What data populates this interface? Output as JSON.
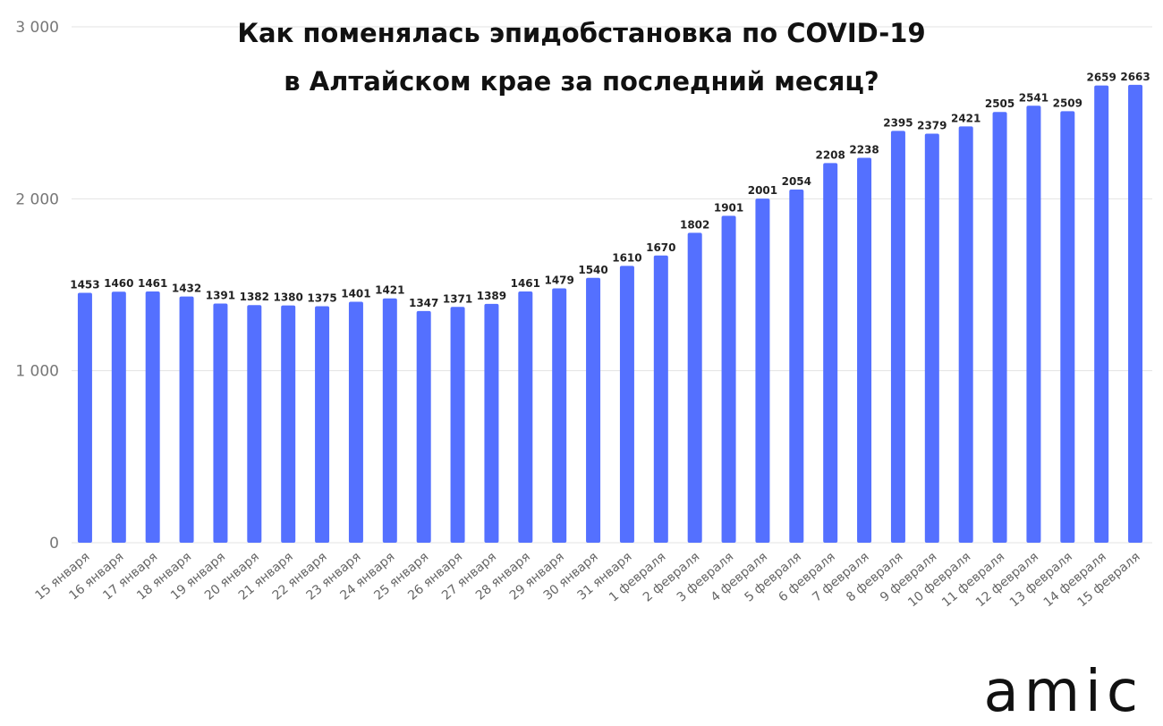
{
  "chart_data": {
    "type": "bar",
    "title_lines": [
      "Как поменялась эпидобстановка по COVID-19",
      "в Алтайском крае за последний месяц?"
    ],
    "categories": [
      "15 января",
      "16 января",
      "17 января",
      "18 января",
      "19 января",
      "20 января",
      "21 января",
      "22 января",
      "23 января",
      "24 января",
      "25 января",
      "26 января",
      "27 января",
      "28 января",
      "29 января",
      "30 января",
      "31 января",
      "1 февраля",
      "2 февраля",
      "3 февраля",
      "4 февраля",
      "5 февраля",
      "6 февраля",
      "7 февраля",
      "8 февраля",
      "9 февраля",
      "10 февраля",
      "11 февраля",
      "12 февраля",
      "13 февраля",
      "14 февраля",
      "15 февраля"
    ],
    "values": [
      1453,
      1460,
      1461,
      1432,
      1391,
      1382,
      1380,
      1375,
      1401,
      1421,
      1347,
      1371,
      1389,
      1461,
      1479,
      1540,
      1610,
      1670,
      1802,
      1901,
      2001,
      2054,
      2208,
      2238,
      2395,
      2379,
      2421,
      2505,
      2541,
      2509,
      2659,
      2663
    ],
    "ylim": [
      0,
      3000
    ],
    "yticks": [
      0,
      1000,
      2000,
      3000
    ],
    "ytick_labels": [
      "0",
      "1 000",
      "2 000",
      "3 000"
    ],
    "grid": true,
    "bar_color": "#5470ff",
    "grid_color": "#e3e3e3"
  },
  "branding": {
    "logo_text": "amic"
  }
}
